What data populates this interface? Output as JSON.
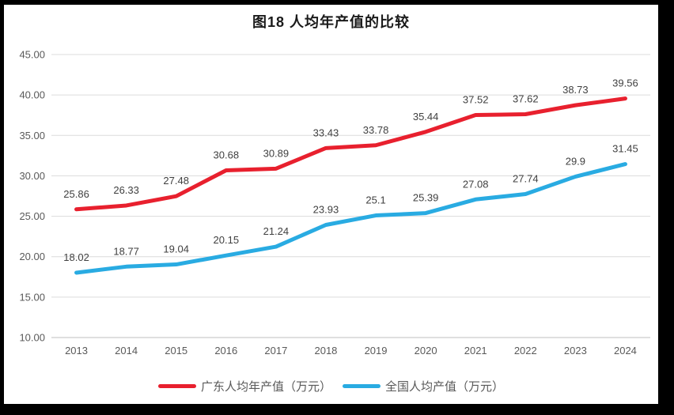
{
  "chart_data": {
    "type": "line",
    "title": "图18 人均年产值的比较",
    "categories": [
      "2013",
      "2014",
      "2015",
      "2016",
      "2017",
      "2018",
      "2019",
      "2020",
      "2021",
      "2022",
      "2023",
      "2024"
    ],
    "series": [
      {
        "name": "广东人均年产值（万元）",
        "color": "#E8202E",
        "values": [
          25.86,
          26.33,
          27.48,
          30.68,
          30.89,
          33.43,
          33.78,
          35.44,
          37.52,
          37.62,
          38.73,
          39.56
        ],
        "labels": [
          "25.86",
          "26.33",
          "27.48",
          "30.68",
          "30.89",
          "33.43",
          "33.78",
          "35.44",
          "37.52",
          "37.62",
          "38.73",
          "39.56"
        ]
      },
      {
        "name": "全国人均产值（万元）",
        "color": "#29ABE2",
        "values": [
          18.02,
          18.77,
          19.04,
          20.15,
          21.24,
          23.93,
          25.1,
          25.39,
          27.08,
          27.74,
          29.9,
          31.45
        ],
        "labels": [
          "18.02",
          "18.77",
          "19.04",
          "20.15",
          "21.24",
          "23.93",
          "25.1",
          "25.39",
          "27.08",
          "27.74",
          "29.9",
          "31.45"
        ]
      }
    ],
    "xlabel": "",
    "ylabel": "",
    "ylim": [
      10,
      45
    ],
    "y_ticks": [
      "45.00",
      "40.00",
      "35.00",
      "30.00",
      "25.00",
      "20.00",
      "15.00",
      "10.00"
    ],
    "grid": true,
    "legend_position": "bottom",
    "data_labels_shown": true,
    "colors": {
      "frame": "#000000",
      "canvas": "#ffffff",
      "gridline": "#DCDCDC",
      "axis_line": "#BFBFBF",
      "tick_text": "#595959",
      "data_label_text": "#404040",
      "title_text": "#1a1a1a"
    }
  }
}
